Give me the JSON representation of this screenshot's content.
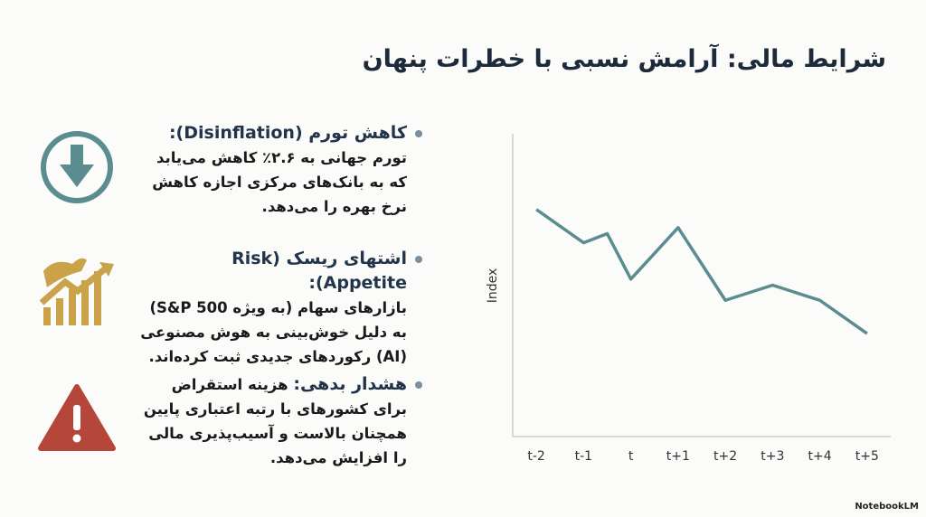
{
  "title": "شرایط مالی: آرامش نسبی با خطرات پنهان",
  "items": [
    {
      "heading": "کاهش تورم (Disinflation):",
      "body": "تورم جهانی به ۲.۶٪ کاهش می‌یابد که به بانک‌های مرکزی اجازه کاهش نرخ بهره را می‌دهد."
    },
    {
      "heading": "اشتهای ریسک (Risk Appetite):",
      "body": "بازارهای سهام (به ویژه S&P 500) به دلیل خوش‌بینی به هوش مصنوعی (AI) رکوردهای جدیدی ثبت کرده‌اند."
    },
    {
      "heading": "هشدار بدهی:",
      "body": "هزینه استقراض برای کشورهای با رتبه اعتباری پایین همچنان بالاست و آسیب‌پذیری مالی را افزایش می‌دهد."
    }
  ],
  "watermark": "NotebookLM",
  "chart_data": {
    "type": "line",
    "ylabel": "Index",
    "x": [
      -2,
      -1,
      -0.5,
      0,
      1,
      2,
      3,
      4,
      5
    ],
    "values": [
      75,
      64,
      67,
      52,
      69,
      45,
      50,
      45,
      34
    ],
    "color": "#5b8d8f",
    "xlim": [
      -2.5,
      5.5
    ],
    "ylim": [
      0,
      100
    ],
    "xticks": [
      {
        "value": -2,
        "label": "t-2"
      },
      {
        "value": -1,
        "label": "t-1"
      },
      {
        "value": 0,
        "label": "t"
      },
      {
        "value": 1,
        "label": "t+1"
      },
      {
        "value": 2,
        "label": "t+2"
      },
      {
        "value": 3,
        "label": "t+3"
      },
      {
        "value": 4,
        "label": "t+4"
      },
      {
        "value": 5,
        "label": "t+5"
      }
    ]
  }
}
